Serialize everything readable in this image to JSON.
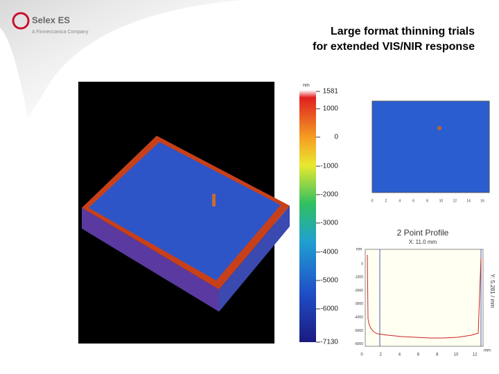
{
  "logo": {
    "name": "Selex ES",
    "tagline": "A Finmeccanica Company"
  },
  "title": [
    "Large format thinning trials",
    "for extended VIS/NIR response"
  ],
  "colorbar": {
    "unit": "nm",
    "ticks": [
      "1581",
      "1000",
      "0",
      "-1000",
      "-2000",
      "-3000",
      "-4000",
      "-5000",
      "-6000",
      "-7130"
    ]
  },
  "map": {
    "xticks": [
      "0",
      "2",
      "4",
      "6",
      "8",
      "10",
      "12",
      "14",
      "16"
    ]
  },
  "profile": {
    "title": "2 Point Profile",
    "subtitle": "X: 11.0 mm",
    "side_label": "Y: 5.281 / mm",
    "y_unit": "nm",
    "x_unit": "mm",
    "yticks": [
      "0",
      "-1000",
      "-2000",
      "-3000",
      "-4000",
      "-5000",
      "-6000"
    ],
    "xticks": [
      "0",
      "2",
      "4",
      "6",
      "8",
      "10",
      "12"
    ]
  }
}
